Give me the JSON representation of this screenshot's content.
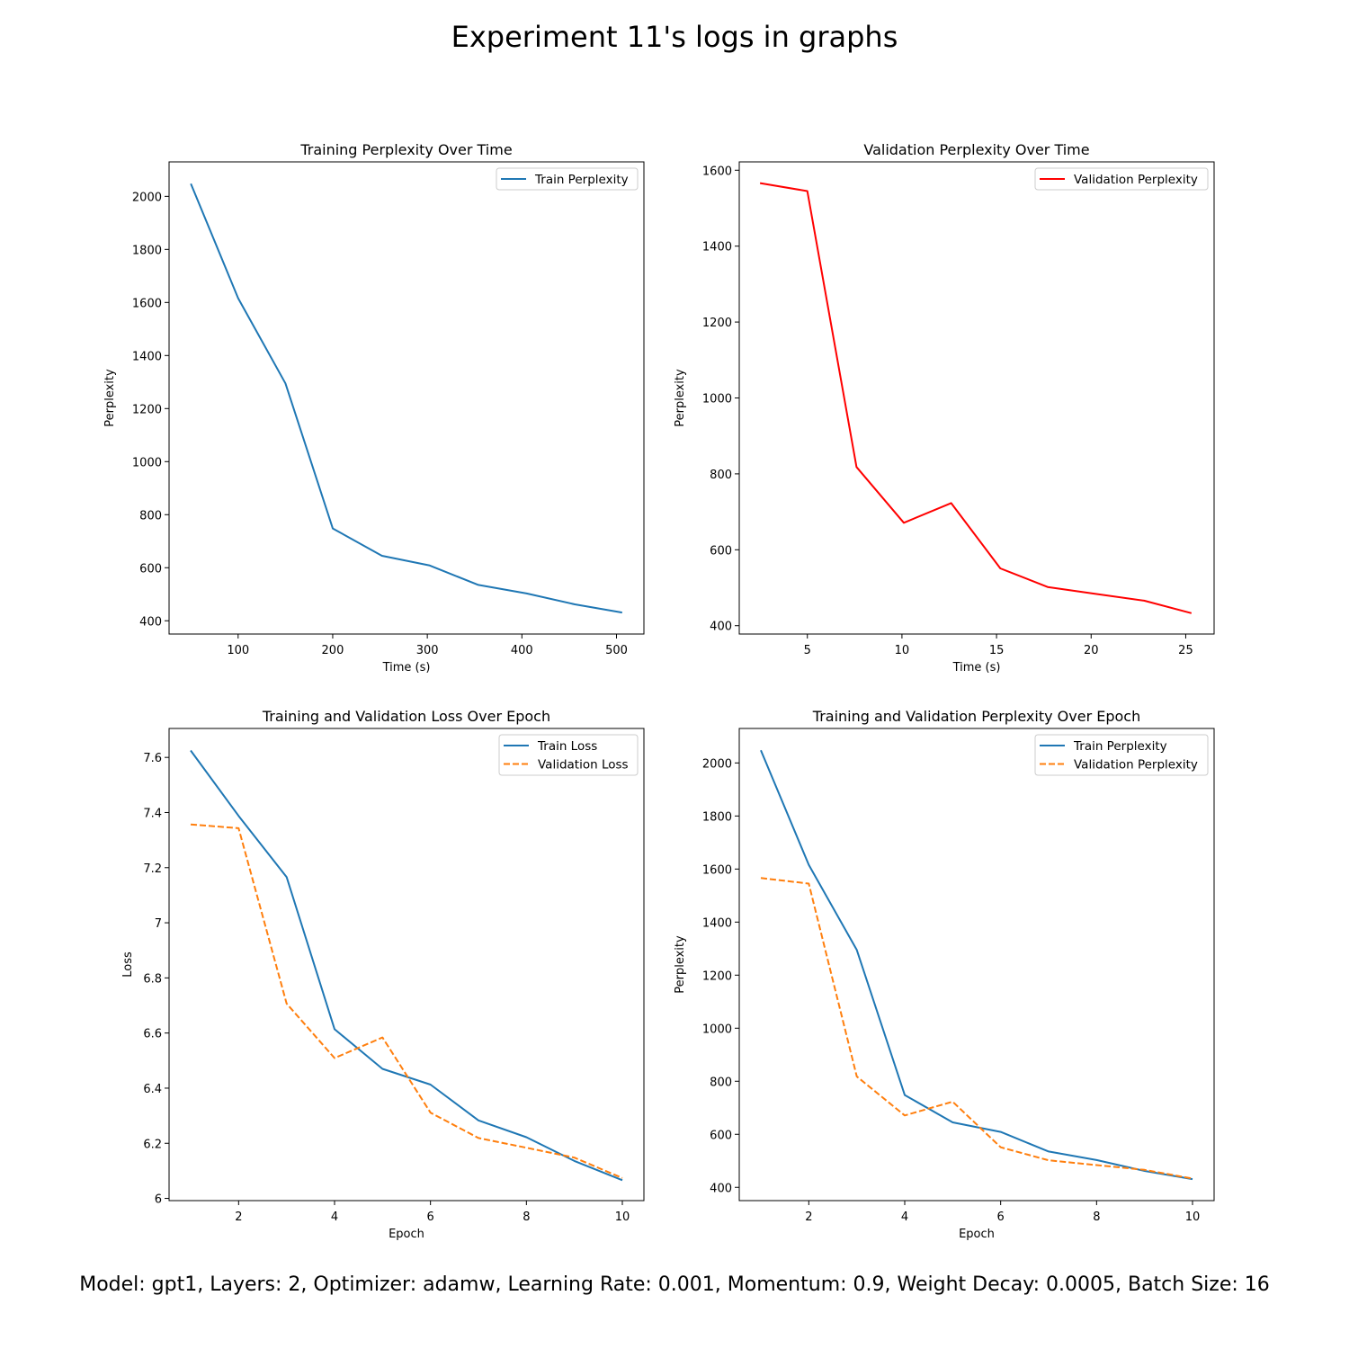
{
  "figure": {
    "suptitle": "Experiment 11's logs in graphs",
    "footer": "Model: gpt1, Layers: 2, Optimizer: adamw, Learning Rate: 0.001, Momentum: 0.9, Weight Decay: 0.0005, Batch Size: 16"
  },
  "chart_data": [
    {
      "type": "line",
      "title": "Training Perplexity Over Time",
      "xlabel": "Time (s)",
      "ylabel": "Perplexity",
      "xlim": [
        27,
        529
      ],
      "ylim": [
        350,
        2130
      ],
      "xticks": [
        100,
        200,
        300,
        400,
        500
      ],
      "yticks": [
        400,
        600,
        800,
        1000,
        1200,
        1400,
        1600,
        1800,
        2000
      ],
      "legend_position": "upper right",
      "series": [
        {
          "name": "Train Perplexity",
          "color": "#1f77b4",
          "dash": "solid",
          "x": [
            50,
            100,
            150,
            200,
            252,
            302,
            354,
            405,
            456,
            506
          ],
          "y": [
            2048,
            1616,
            1295,
            748,
            645,
            609,
            535,
            503,
            462,
            431
          ]
        }
      ]
    },
    {
      "type": "line",
      "title": "Validation Perplexity Over Time",
      "xlabel": "Time (s)",
      "ylabel": "Perplexity",
      "xlim": [
        1.4,
        26.5
      ],
      "ylim": [
        378,
        1622
      ],
      "xticks": [
        5,
        10,
        15,
        20,
        25
      ],
      "yticks": [
        400,
        600,
        800,
        1000,
        1200,
        1400,
        1600
      ],
      "legend_position": "upper right",
      "series": [
        {
          "name": "Validation Perplexity",
          "color": "#ff0000",
          "dash": "solid",
          "x": [
            2.5,
            5.0,
            7.6,
            10.1,
            12.6,
            15.2,
            17.7,
            20.2,
            22.8,
            25.3
          ],
          "y": [
            1566,
            1545,
            818,
            671,
            723,
            551,
            502,
            484,
            466,
            433
          ]
        }
      ]
    },
    {
      "type": "line",
      "title": "Training and Validation Loss Over Epoch",
      "xlabel": "Epoch",
      "ylabel": "Loss",
      "xlim": [
        0.55,
        10.45
      ],
      "ylim": [
        5.992,
        7.705
      ],
      "xticks": [
        2,
        4,
        6,
        8,
        10
      ],
      "yticks": [
        6.0,
        6.2,
        6.4,
        6.6,
        6.8,
        7.0,
        7.2,
        7.4,
        7.6
      ],
      "legend_position": "upper right",
      "series": [
        {
          "name": "Train Loss",
          "color": "#1f77b4",
          "dash": "solid",
          "x": [
            1,
            2,
            3,
            4,
            5,
            6,
            7,
            8,
            9,
            10
          ],
          "y": [
            7.625,
            7.388,
            7.166,
            6.614,
            6.47,
            6.413,
            6.283,
            6.222,
            6.136,
            6.066
          ]
        },
        {
          "name": "Validation Loss",
          "color": "#ff7f0e",
          "dash": "dashed",
          "x": [
            1,
            2,
            3,
            4,
            5,
            6,
            7,
            8,
            9,
            10
          ],
          "y": [
            7.357,
            7.343,
            6.707,
            6.509,
            6.584,
            6.311,
            6.219,
            6.184,
            6.148,
            6.074
          ]
        }
      ]
    },
    {
      "type": "line",
      "title": "Training and Validation Perplexity Over Epoch",
      "xlabel": "Epoch",
      "ylabel": "Perplexity",
      "xlim": [
        0.55,
        10.45
      ],
      "ylim": [
        350,
        2130
      ],
      "xticks": [
        2,
        4,
        6,
        8,
        10
      ],
      "yticks": [
        400,
        600,
        800,
        1000,
        1200,
        1400,
        1600,
        1800,
        2000
      ],
      "legend_position": "upper right",
      "series": [
        {
          "name": "Train Perplexity",
          "color": "#1f77b4",
          "dash": "solid",
          "x": [
            1,
            2,
            3,
            4,
            5,
            6,
            7,
            8,
            9,
            10
          ],
          "y": [
            2048,
            1616,
            1295,
            748,
            645,
            609,
            535,
            503,
            462,
            431
          ]
        },
        {
          "name": "Validation Perplexity",
          "color": "#ff7f0e",
          "dash": "dashed",
          "x": [
            1,
            2,
            3,
            4,
            5,
            6,
            7,
            8,
            9,
            10
          ],
          "y": [
            1566,
            1545,
            818,
            671,
            723,
            551,
            502,
            484,
            466,
            433
          ]
        }
      ]
    }
  ]
}
